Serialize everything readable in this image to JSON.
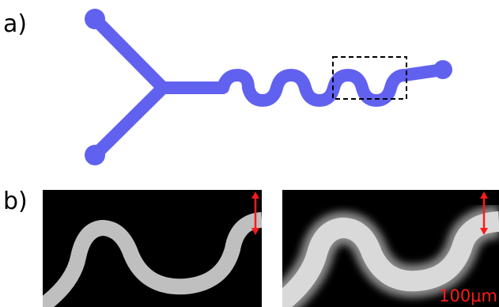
{
  "panels": {
    "a": {
      "label": "a)"
    },
    "b": {
      "label": "b)"
    }
  },
  "scale_bar": {
    "text": "100μm"
  },
  "colors": {
    "channel": "#6161f0",
    "channel_outline": "#4848c8",
    "arrow": "#ff1a1a",
    "micrograph_background": "#000000",
    "micrograph_channel": "#bfbfbf"
  }
}
